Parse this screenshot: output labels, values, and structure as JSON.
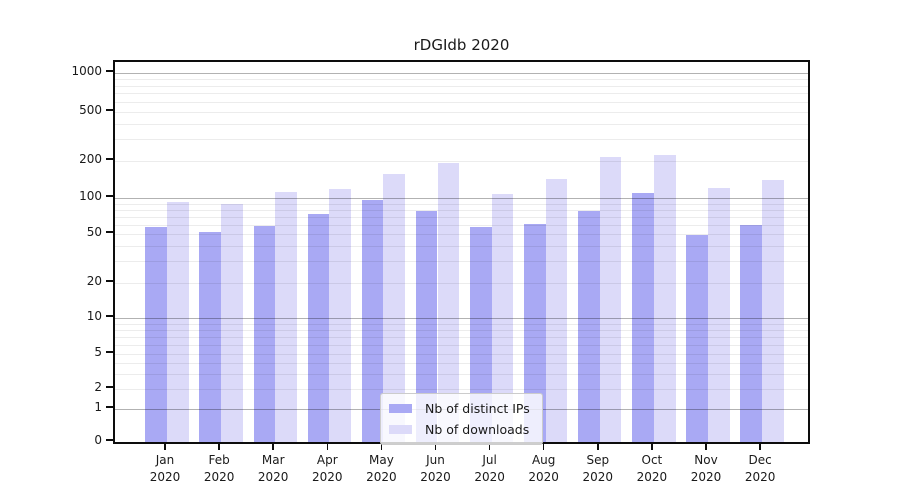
{
  "chart_data": {
    "type": "bar",
    "title": "rDGIdb 2020",
    "months": [
      "Jan",
      "Feb",
      "Mar",
      "Apr",
      "May",
      "Jun",
      "Jul",
      "Aug",
      "Sep",
      "Oct",
      "Nov",
      "Dec"
    ],
    "year": "2020",
    "series": [
      {
        "name": "Nb of distinct IPs",
        "color": "#a9a9f4",
        "values": [
          57,
          52,
          58,
          73,
          96,
          78,
          57,
          61,
          78,
          110,
          49,
          59
        ]
      },
      {
        "name": "Nb of downloads",
        "color": "#dcdaf9",
        "values": [
          93,
          90,
          112,
          118,
          158,
          193,
          107,
          143,
          215,
          224,
          121,
          141
        ]
      }
    ],
    "y_ticks": [
      0,
      1,
      2,
      5,
      10,
      20,
      50,
      100,
      200,
      500,
      1000
    ],
    "y_axis_scale": "log",
    "ylim_labels": [
      0,
      1000
    ],
    "grid": true,
    "legend": {
      "position": "inside-bottom-center",
      "entries": [
        "Nb of distinct IPs",
        "Nb of downloads"
      ]
    }
  },
  "colors": {
    "background": "#ffffff",
    "axis": "#0d0d0d",
    "text": "#1a1a1a",
    "grid_major": "rgba(0,0,0,0.30)",
    "grid_minor": "rgba(0,0,0,0.075)",
    "legend_border": "#cccccc"
  }
}
